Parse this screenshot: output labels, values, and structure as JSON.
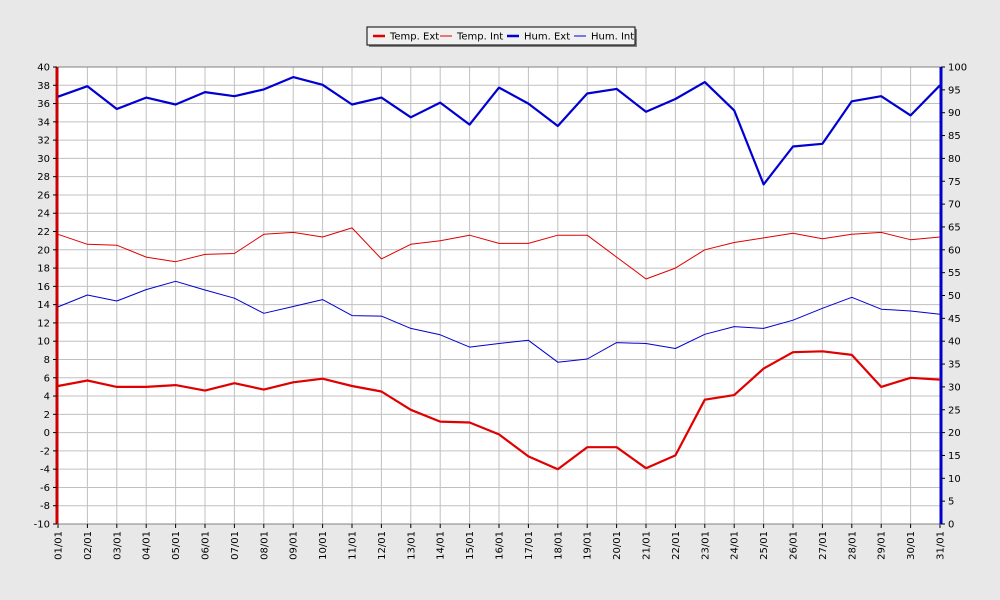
{
  "chart_data": {
    "type": "line",
    "title": "",
    "xlabel": "",
    "ylabel": "",
    "legend_position": "top-center",
    "grid": true,
    "categories": [
      "01/01",
      "02/01",
      "03/01",
      "04/01",
      "05/01",
      "06/01",
      "07/01",
      "08/01",
      "09/01",
      "10/01",
      "11/01",
      "12/01",
      "13/01",
      "14/01",
      "15/01",
      "16/01",
      "17/01",
      "18/01",
      "19/01",
      "20/01",
      "21/01",
      "22/01",
      "23/01",
      "24/01",
      "25/01",
      "26/01",
      "27/01",
      "28/01",
      "29/01",
      "30/01",
      "31/01"
    ],
    "y_left": {
      "min": -10,
      "max": 40,
      "step": 2,
      "color": "#cc0000"
    },
    "y_right": {
      "min": 0,
      "max": 100,
      "step": 5,
      "color": "#0000cc"
    },
    "series": [
      {
        "name": "Temp. Ext",
        "axis": "left",
        "color": "#e00000",
        "width": "thick",
        "values": [
          5.1,
          5.7,
          5.0,
          5.0,
          5.2,
          4.6,
          5.4,
          4.7,
          5.5,
          5.9,
          5.1,
          4.5,
          2.5,
          1.2,
          1.1,
          -0.2,
          -2.6,
          -4.0,
          -1.6,
          -1.6,
          -3.9,
          -2.5,
          3.6,
          4.1,
          7.0,
          8.8,
          8.9,
          8.5,
          5.0,
          6.0,
          5.8
        ]
      },
      {
        "name": "Temp. Int",
        "axis": "left",
        "color": "#e00000",
        "width": "thin",
        "values": [
          21.7,
          20.6,
          20.5,
          19.2,
          18.7,
          19.5,
          19.6,
          21.7,
          21.9,
          21.4,
          22.4,
          19.0,
          20.6,
          21.0,
          21.6,
          20.7,
          20.7,
          21.6,
          21.6,
          19.2,
          16.8,
          18.0,
          20.0,
          20.8,
          21.3,
          21.8,
          21.2,
          21.7,
          21.9,
          21.1,
          21.4
        ]
      },
      {
        "name": "Hum. Ext",
        "axis": "right",
        "color": "#0000d0",
        "width": "thick",
        "values": [
          93.5,
          95.8,
          90.8,
          93.3,
          91.8,
          94.5,
          93.6,
          95.1,
          97.8,
          96.1,
          91.8,
          93.3,
          89.0,
          92.2,
          87.4,
          95.5,
          92.0,
          87.1,
          94.2,
          95.2,
          90.2,
          93.0,
          96.7,
          90.5,
          74.3,
          82.6,
          83.2,
          92.5,
          93.6,
          89.4,
          96.0
        ]
      },
      {
        "name": "Hum. Int",
        "axis": "right",
        "color": "#0000d0",
        "width": "thin",
        "values": [
          47.5,
          50.1,
          48.8,
          51.3,
          53.1,
          51.2,
          49.4,
          46.1,
          47.6,
          49.1,
          45.6,
          45.5,
          42.8,
          41.4,
          38.7,
          39.5,
          40.2,
          35.4,
          36.1,
          39.7,
          39.5,
          38.4,
          41.5,
          43.2,
          42.8,
          44.6,
          47.2,
          49.6,
          47.0,
          46.6,
          45.9
        ]
      }
    ]
  }
}
